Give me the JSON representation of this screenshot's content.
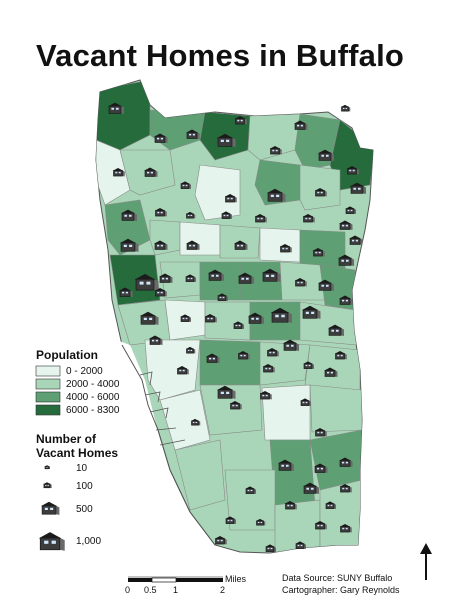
{
  "title": "Vacant Homes in Buffalo",
  "legend": {
    "population_title": "Population",
    "population_classes": [
      {
        "label": "0 - 2000",
        "color": "#e5f4ec"
      },
      {
        "label": "2000 - 4000",
        "color": "#a9d6b8"
      },
      {
        "label": "4000 - 6000",
        "color": "#5e9f74"
      },
      {
        "label": "6000 - 8300",
        "color": "#266b3c"
      }
    ],
    "vacant_title_line1": "Number of",
    "vacant_title_line2": "Vacant Homes",
    "vacant_classes": [
      {
        "label": "10",
        "value": 10
      },
      {
        "label": "100",
        "value": 100
      },
      {
        "label": "500",
        "value": 500
      },
      {
        "label": "1,000",
        "value": 1000
      }
    ]
  },
  "scale_bar": {
    "ticks": [
      "0",
      "0.5",
      "1",
      "2"
    ],
    "unit": "Miles"
  },
  "credits": {
    "source": "Data Source: SUNY Buffalo",
    "cartographer": "Cartographer: Gary Reynolds"
  },
  "north_arrow": {
    "icon": "north-arrow-icon"
  }
}
